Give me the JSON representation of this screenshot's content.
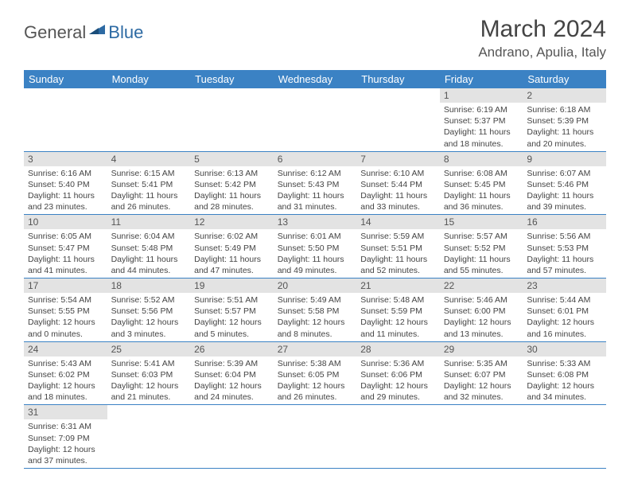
{
  "logo": {
    "part1": "General",
    "part2": "Blue"
  },
  "title": "March 2024",
  "location": "Andrano, Apulia, Italy",
  "days_of_week": [
    "Sunday",
    "Monday",
    "Tuesday",
    "Wednesday",
    "Thursday",
    "Friday",
    "Saturday"
  ],
  "colors": {
    "header_bg": "#3b82c4",
    "header_text": "#ffffff",
    "daynum_bg": "#e3e3e3",
    "row_divider": "#3b82c4",
    "logo_accent": "#2d6aa3"
  },
  "weeks": [
    [
      null,
      null,
      null,
      null,
      null,
      {
        "n": "1",
        "sr": "6:19 AM",
        "ss": "5:37 PM",
        "dl": "11 hours and 18 minutes."
      },
      {
        "n": "2",
        "sr": "6:18 AM",
        "ss": "5:39 PM",
        "dl": "11 hours and 20 minutes."
      }
    ],
    [
      {
        "n": "3",
        "sr": "6:16 AM",
        "ss": "5:40 PM",
        "dl": "11 hours and 23 minutes."
      },
      {
        "n": "4",
        "sr": "6:15 AM",
        "ss": "5:41 PM",
        "dl": "11 hours and 26 minutes."
      },
      {
        "n": "5",
        "sr": "6:13 AM",
        "ss": "5:42 PM",
        "dl": "11 hours and 28 minutes."
      },
      {
        "n": "6",
        "sr": "6:12 AM",
        "ss": "5:43 PM",
        "dl": "11 hours and 31 minutes."
      },
      {
        "n": "7",
        "sr": "6:10 AM",
        "ss": "5:44 PM",
        "dl": "11 hours and 33 minutes."
      },
      {
        "n": "8",
        "sr": "6:08 AM",
        "ss": "5:45 PM",
        "dl": "11 hours and 36 minutes."
      },
      {
        "n": "9",
        "sr": "6:07 AM",
        "ss": "5:46 PM",
        "dl": "11 hours and 39 minutes."
      }
    ],
    [
      {
        "n": "10",
        "sr": "6:05 AM",
        "ss": "5:47 PM",
        "dl": "11 hours and 41 minutes."
      },
      {
        "n": "11",
        "sr": "6:04 AM",
        "ss": "5:48 PM",
        "dl": "11 hours and 44 minutes."
      },
      {
        "n": "12",
        "sr": "6:02 AM",
        "ss": "5:49 PM",
        "dl": "11 hours and 47 minutes."
      },
      {
        "n": "13",
        "sr": "6:01 AM",
        "ss": "5:50 PM",
        "dl": "11 hours and 49 minutes."
      },
      {
        "n": "14",
        "sr": "5:59 AM",
        "ss": "5:51 PM",
        "dl": "11 hours and 52 minutes."
      },
      {
        "n": "15",
        "sr": "5:57 AM",
        "ss": "5:52 PM",
        "dl": "11 hours and 55 minutes."
      },
      {
        "n": "16",
        "sr": "5:56 AM",
        "ss": "5:53 PM",
        "dl": "11 hours and 57 minutes."
      }
    ],
    [
      {
        "n": "17",
        "sr": "5:54 AM",
        "ss": "5:55 PM",
        "dl": "12 hours and 0 minutes."
      },
      {
        "n": "18",
        "sr": "5:52 AM",
        "ss": "5:56 PM",
        "dl": "12 hours and 3 minutes."
      },
      {
        "n": "19",
        "sr": "5:51 AM",
        "ss": "5:57 PM",
        "dl": "12 hours and 5 minutes."
      },
      {
        "n": "20",
        "sr": "5:49 AM",
        "ss": "5:58 PM",
        "dl": "12 hours and 8 minutes."
      },
      {
        "n": "21",
        "sr": "5:48 AM",
        "ss": "5:59 PM",
        "dl": "12 hours and 11 minutes."
      },
      {
        "n": "22",
        "sr": "5:46 AM",
        "ss": "6:00 PM",
        "dl": "12 hours and 13 minutes."
      },
      {
        "n": "23",
        "sr": "5:44 AM",
        "ss": "6:01 PM",
        "dl": "12 hours and 16 minutes."
      }
    ],
    [
      {
        "n": "24",
        "sr": "5:43 AM",
        "ss": "6:02 PM",
        "dl": "12 hours and 18 minutes."
      },
      {
        "n": "25",
        "sr": "5:41 AM",
        "ss": "6:03 PM",
        "dl": "12 hours and 21 minutes."
      },
      {
        "n": "26",
        "sr": "5:39 AM",
        "ss": "6:04 PM",
        "dl": "12 hours and 24 minutes."
      },
      {
        "n": "27",
        "sr": "5:38 AM",
        "ss": "6:05 PM",
        "dl": "12 hours and 26 minutes."
      },
      {
        "n": "28",
        "sr": "5:36 AM",
        "ss": "6:06 PM",
        "dl": "12 hours and 29 minutes."
      },
      {
        "n": "29",
        "sr": "5:35 AM",
        "ss": "6:07 PM",
        "dl": "12 hours and 32 minutes."
      },
      {
        "n": "30",
        "sr": "5:33 AM",
        "ss": "6:08 PM",
        "dl": "12 hours and 34 minutes."
      }
    ],
    [
      {
        "n": "31",
        "sr": "6:31 AM",
        "ss": "7:09 PM",
        "dl": "12 hours and 37 minutes."
      },
      null,
      null,
      null,
      null,
      null,
      null
    ]
  ],
  "labels": {
    "sunrise": "Sunrise:",
    "sunset": "Sunset:",
    "daylight": "Daylight:"
  }
}
